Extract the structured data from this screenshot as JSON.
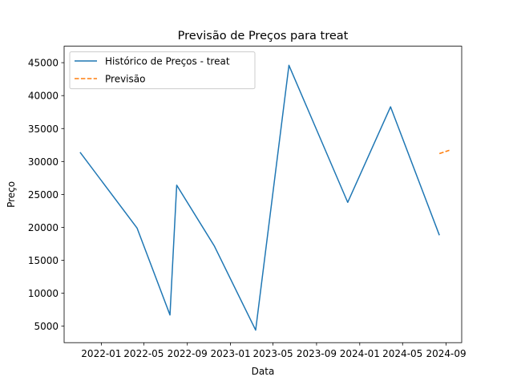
{
  "chart_data": {
    "type": "line",
    "title": "Previsão de Preços para treat",
    "xlabel": "Data",
    "ylabel": "Preço",
    "x_type": "date",
    "xlim": [
      "2021-09-18",
      "2024-10-15"
    ],
    "ylim": [
      2500,
      47500
    ],
    "x_ticks": [
      {
        "date": "2022-01-01",
        "label": "2022-01"
      },
      {
        "date": "2022-05-01",
        "label": "2022-05"
      },
      {
        "date": "2022-09-01",
        "label": "2022-09"
      },
      {
        "date": "2023-01-01",
        "label": "2023-01"
      },
      {
        "date": "2023-05-01",
        "label": "2023-05"
      },
      {
        "date": "2023-09-01",
        "label": "2023-09"
      },
      {
        "date": "2024-01-01",
        "label": "2024-01"
      },
      {
        "date": "2024-05-01",
        "label": "2024-05"
      },
      {
        "date": "2024-09-01",
        "label": "2024-09"
      }
    ],
    "y_ticks": [
      5000,
      10000,
      15000,
      20000,
      25000,
      30000,
      35000,
      40000,
      45000
    ],
    "grid": false,
    "legend": {
      "position": "top-left"
    },
    "series": [
      {
        "name": "Histórico de Preços - treat",
        "color": "#1f77b4",
        "style": "solid",
        "points": [
          {
            "x": "2021-11-02",
            "y": 31400
          },
          {
            "x": "2022-04-12",
            "y": 19900
          },
          {
            "x": "2022-07-14",
            "y": 6700
          },
          {
            "x": "2022-08-02",
            "y": 26400
          },
          {
            "x": "2022-11-16",
            "y": 17200
          },
          {
            "x": "2023-03-13",
            "y": 4400
          },
          {
            "x": "2023-06-15",
            "y": 44600
          },
          {
            "x": "2023-11-28",
            "y": 23800
          },
          {
            "x": "2024-03-28",
            "y": 38300
          },
          {
            "x": "2024-08-13",
            "y": 18800
          }
        ]
      },
      {
        "name": "Previsão",
        "color": "#ff7f0e",
        "style": "dashed",
        "points": [
          {
            "x": "2024-08-13",
            "y": 31200
          },
          {
            "x": "2024-09-10",
            "y": 31700
          }
        ]
      }
    ]
  }
}
